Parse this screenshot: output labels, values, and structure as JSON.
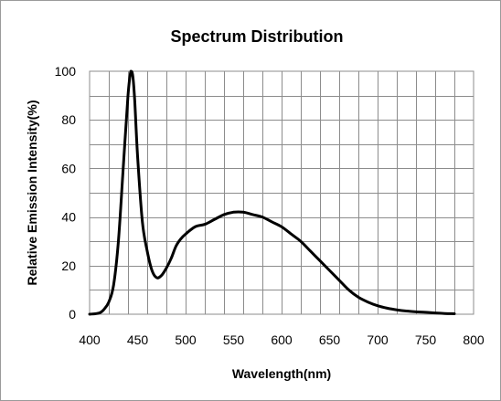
{
  "chart_data": {
    "type": "line",
    "title": "Spectrum Distribution",
    "xlabel": "Wavelength(nm)",
    "ylabel": "Relative Emission Intensity(%)",
    "xlim": [
      400,
      800
    ],
    "ylim": [
      0,
      100
    ],
    "x_ticks": [
      400,
      450,
      500,
      550,
      600,
      650,
      700,
      750,
      800
    ],
    "y_ticks": [
      0,
      20,
      40,
      60,
      80,
      100
    ],
    "x_grid_step": 20,
    "y_grid_step": 10,
    "grid": true,
    "legend": "none",
    "line_color": "#000000",
    "series": [
      {
        "x": [
          400,
          410,
          415,
          420,
          425,
          430,
          435,
          440,
          443,
          445,
          447,
          450,
          455,
          460,
          465,
          470,
          475,
          480,
          485,
          490,
          495,
          500,
          510,
          520,
          530,
          540,
          550,
          560,
          570,
          580,
          590,
          600,
          610,
          620,
          630,
          640,
          650,
          660,
          670,
          680,
          690,
          700,
          710,
          720,
          730,
          740,
          750,
          760,
          770,
          780
        ],
        "y": [
          0,
          0.5,
          2,
          5,
          12,
          30,
          60,
          90,
          100,
          98,
          88,
          65,
          38,
          26,
          18,
          15,
          16,
          19,
          23,
          28,
          31,
          33,
          36,
          37,
          39,
          41,
          42,
          42,
          41,
          40,
          38,
          36,
          33,
          30,
          26,
          22,
          18,
          14,
          10,
          7,
          5,
          3.5,
          2.5,
          1.8,
          1.3,
          1,
          0.8,
          0.5,
          0.3,
          0.2
        ]
      }
    ]
  }
}
